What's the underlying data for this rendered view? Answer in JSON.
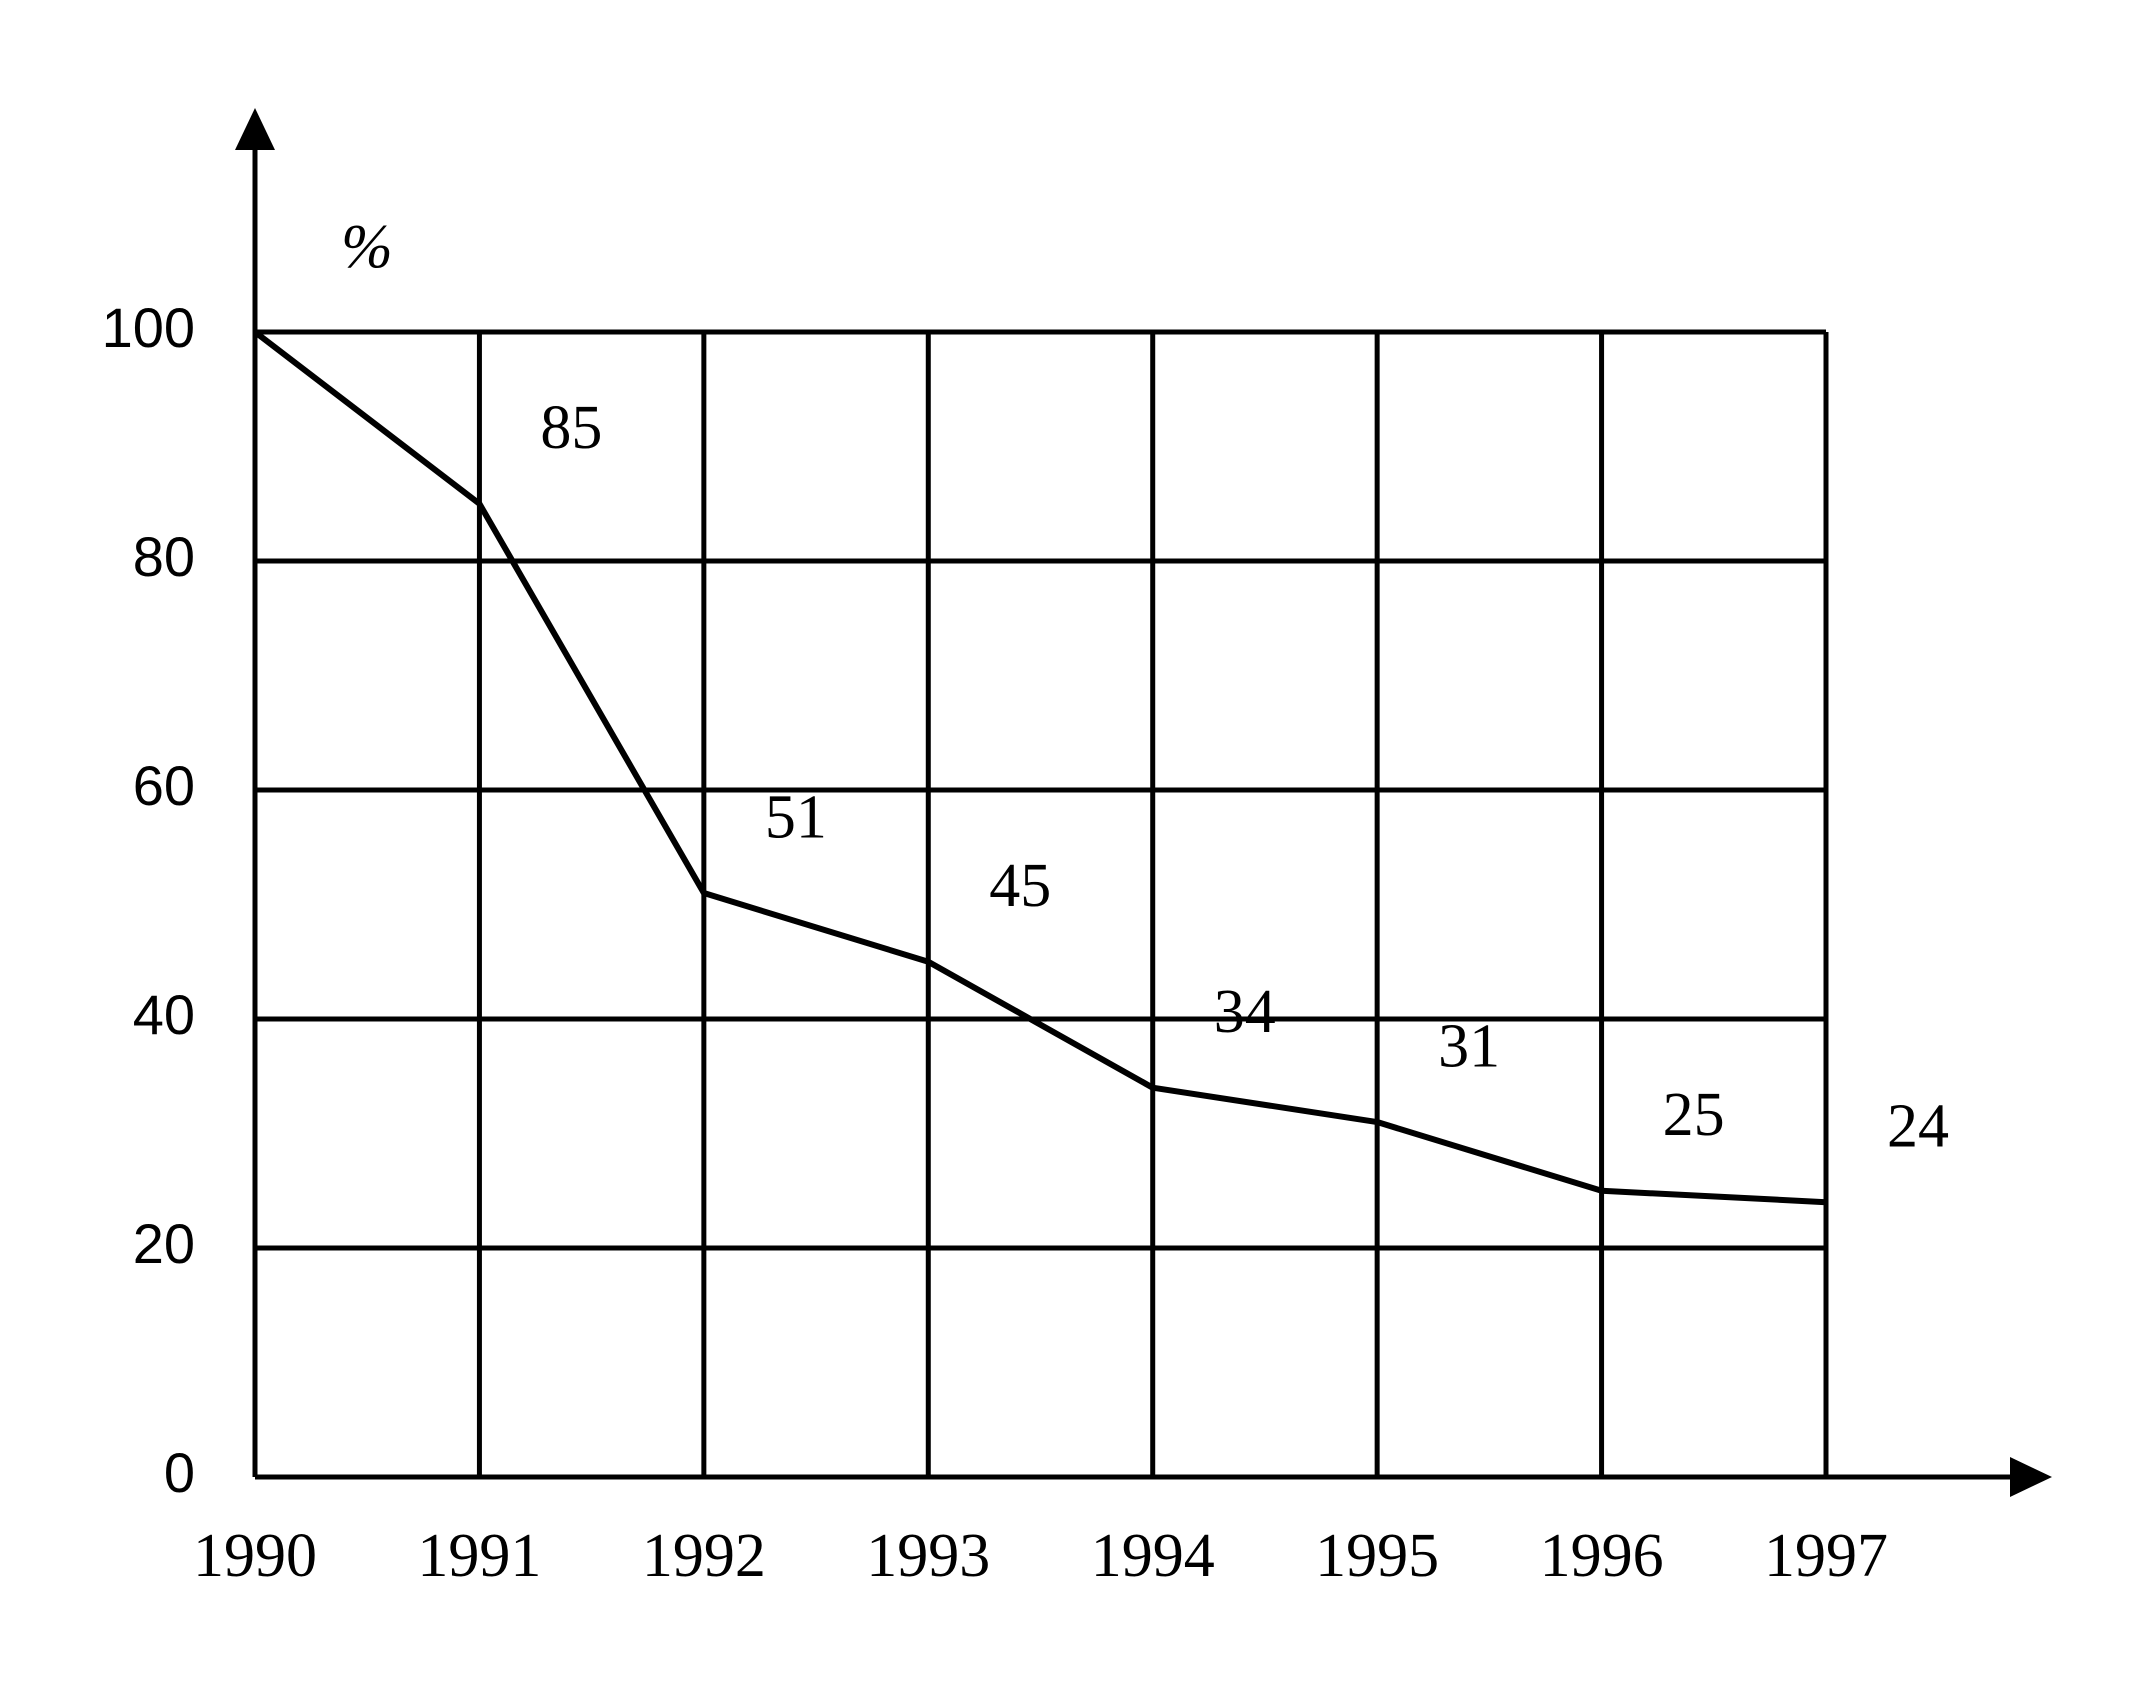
{
  "chart_data": {
    "type": "line",
    "y_label": "%",
    "x": [
      1990,
      1991,
      1992,
      1993,
      1994,
      1995,
      1996,
      1997
    ],
    "values": [
      100,
      85,
      51,
      45,
      34,
      31,
      25,
      24
    ],
    "value_labels": [
      null,
      "85",
      "51",
      "45",
      "34",
      "31",
      "25",
      "24"
    ],
    "color": "#000000",
    "xlim": [
      1990,
      1997
    ],
    "xticks": [
      1990,
      1991,
      1992,
      1993,
      1994,
      1995,
      1996,
      1997
    ],
    "ylim": [
      0,
      100
    ],
    "yticks": [
      0,
      20,
      40,
      60,
      80,
      100
    ],
    "grid": true
  }
}
